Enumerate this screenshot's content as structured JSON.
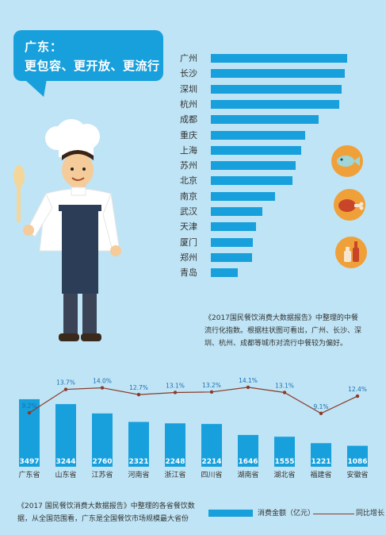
{
  "bubble": {
    "line1": "广东：",
    "line2": "更包容、更开放、更流行"
  },
  "city_chart": {
    "type": "bar",
    "orientation": "horizontal",
    "categories": [
      "广州",
      "长沙",
      "深圳",
      "杭州",
      "成都",
      "重庆",
      "上海",
      "苏州",
      "北京",
      "南京",
      "武汉",
      "天津",
      "厦门",
      "郑州",
      "青岛"
    ],
    "values": [
      100,
      98,
      96,
      94,
      79,
      69,
      66,
      62,
      60,
      47,
      38,
      33,
      31,
      30,
      20
    ],
    "value_scale": "relative index",
    "color": "#18a0dc"
  },
  "icons": [
    "fish-icon",
    "drumstick-icon",
    "bottles-icon"
  ],
  "note1": "《2017国民餐饮消费大数据报告》中整理的中餐流行化指数。根据柱状图可看出，广州、长沙、深圳、杭州、成都等城市对流行中餐较为偏好。",
  "chart_data": {
    "type": "bar",
    "categories": [
      "广东省",
      "山东省",
      "江苏省",
      "河南省",
      "浙江省",
      "四川省",
      "湖南省",
      "湖北省",
      "福建省",
      "安徽省"
    ],
    "series": [
      {
        "name": "消费金额（亿元）",
        "type": "bar",
        "values": [
          3497,
          3244,
          2760,
          2321,
          2248,
          2214,
          1646,
          1555,
          1221,
          1086
        ],
        "color": "#18a0dc"
      },
      {
        "name": "同比增长",
        "type": "line",
        "values": [
          9.2,
          13.7,
          14.0,
          12.7,
          13.1,
          13.2,
          14.1,
          13.1,
          9.1,
          12.4
        ],
        "labels": [
          "9.2%",
          "13.7%",
          "14.0%",
          "12.7%",
          "13.1%",
          "13.2%",
          "14.1%",
          "13.1%",
          "9.1%",
          "12.4%"
        ],
        "color": "#8b3a28"
      }
    ],
    "bar_labels": [
      "3497",
      "3244",
      "2760",
      "2321",
      "2248",
      "2214",
      "1646",
      "1555",
      "1221",
      "1086"
    ]
  },
  "note2": "《2017 国民餐饮消费大数据报告》中整理的各省餐饮数据，从全国范围看，广东是全国餐饮市场规模最大省份",
  "legend": {
    "bar": "消费金额（亿元）",
    "line": "同比增长"
  }
}
